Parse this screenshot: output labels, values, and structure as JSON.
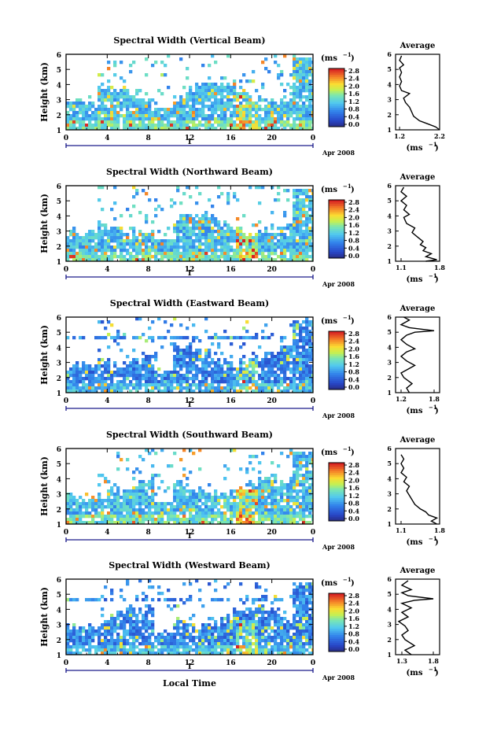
{
  "common": {
    "ylabel": "Height (km)",
    "unit": "(ms",
    "unit_exp": "−1",
    "date_label": "Apr 2008",
    "day_label": "1",
    "avg_title": "Average",
    "xlabel": "Local Time",
    "xticks": [
      "0",
      "4",
      "8",
      "12",
      "16",
      "20",
      "0"
    ],
    "yticks": [
      "1",
      "2",
      "3",
      "4",
      "5",
      "6"
    ],
    "cbar_ticks": [
      "2.8",
      "2.4",
      "2.0",
      "1.6",
      "1.2",
      "0.8",
      "0.4",
      "0.0"
    ]
  },
  "chart_data": [
    {
      "type": "heatmap",
      "title": "Spectral Width (Vertical Beam)",
      "xlabel": "",
      "ylabel": "Height (km)",
      "xlim": [
        0,
        24
      ],
      "ylim": [
        1,
        6
      ],
      "colorbar": {
        "label": "(ms^-1)",
        "range": [
          0.0,
          2.8
        ]
      },
      "profile": {
        "title": "Average",
        "xlabel": "(ms^-1)",
        "xticks": [
          "1.2",
          "2.2"
        ],
        "xlim": [
          1.1,
          2.2
        ],
        "points": [
          [
            2.2,
            1.0
          ],
          [
            2.1,
            1.2
          ],
          [
            1.9,
            1.4
          ],
          [
            1.7,
            1.6
          ],
          [
            1.55,
            1.9
          ],
          [
            1.5,
            2.2
          ],
          [
            1.45,
            2.5
          ],
          [
            1.35,
            2.8
          ],
          [
            1.3,
            3.1
          ],
          [
            1.45,
            3.4
          ],
          [
            1.25,
            3.6
          ],
          [
            1.2,
            3.9
          ],
          [
            1.25,
            4.2
          ],
          [
            1.2,
            4.5
          ],
          [
            1.25,
            4.8
          ],
          [
            1.2,
            5.1
          ],
          [
            1.3,
            5.3
          ],
          [
            1.2,
            5.6
          ],
          [
            1.25,
            5.9
          ]
        ]
      }
    },
    {
      "type": "heatmap",
      "title": "Spectral Width (Northward Beam)",
      "xlabel": "",
      "ylabel": "Height (km)",
      "xlim": [
        0,
        24
      ],
      "ylim": [
        1,
        6
      ],
      "colorbar": {
        "label": "(ms^-1)",
        "range": [
          0.0,
          2.8
        ]
      },
      "profile": {
        "title": "Average",
        "xlabel": "(ms^-1)",
        "xticks": [
          "1.1",
          "1.8"
        ],
        "xlim": [
          1.0,
          1.8
        ],
        "points": [
          [
            1.55,
            1.0
          ],
          [
            1.75,
            1.1
          ],
          [
            1.55,
            1.3
          ],
          [
            1.65,
            1.5
          ],
          [
            1.5,
            1.7
          ],
          [
            1.55,
            1.9
          ],
          [
            1.45,
            2.1
          ],
          [
            1.5,
            2.3
          ],
          [
            1.4,
            2.6
          ],
          [
            1.3,
            2.9
          ],
          [
            1.35,
            3.2
          ],
          [
            1.2,
            3.5
          ],
          [
            1.15,
            3.9
          ],
          [
            1.25,
            4.1
          ],
          [
            1.15,
            4.4
          ],
          [
            1.2,
            4.7
          ],
          [
            1.1,
            5.0
          ],
          [
            1.2,
            5.3
          ],
          [
            1.1,
            5.6
          ],
          [
            1.15,
            5.9
          ]
        ]
      }
    },
    {
      "type": "heatmap",
      "title": "Spectral Width (Eastward Beam)",
      "xlabel": "",
      "ylabel": "Height (km)",
      "xlim": [
        0,
        24
      ],
      "ylim": [
        1,
        6
      ],
      "colorbar": {
        "label": "(ms^-1)",
        "range": [
          0.0,
          2.8
        ]
      },
      "profile": {
        "title": "Average",
        "xlabel": "(ms^-1)",
        "xticks": [
          "1.2",
          "1.8"
        ],
        "xlim": [
          1.1,
          1.9
        ],
        "points": [
          [
            1.35,
            1.0
          ],
          [
            1.3,
            1.3
          ],
          [
            1.4,
            1.6
          ],
          [
            1.25,
            2.0
          ],
          [
            1.2,
            2.3
          ],
          [
            1.35,
            2.6
          ],
          [
            1.45,
            2.8
          ],
          [
            1.3,
            3.1
          ],
          [
            1.2,
            3.4
          ],
          [
            1.3,
            3.7
          ],
          [
            1.45,
            3.9
          ],
          [
            1.3,
            4.2
          ],
          [
            1.2,
            4.5
          ],
          [
            1.3,
            4.8
          ],
          [
            1.45,
            5.0
          ],
          [
            1.8,
            5.1
          ],
          [
            1.35,
            5.3
          ],
          [
            1.2,
            5.5
          ],
          [
            1.35,
            5.8
          ],
          [
            1.25,
            6.0
          ]
        ]
      }
    },
    {
      "type": "heatmap",
      "title": "Spectral Width (Southward Beam)",
      "xlabel": "",
      "ylabel": "Height (km)",
      "xlim": [
        0,
        24
      ],
      "ylim": [
        1,
        6
      ],
      "colorbar": {
        "label": "(ms^-1)",
        "range": [
          0.0,
          2.8
        ]
      },
      "profile": {
        "title": "Average",
        "xlabel": "(ms^-1)",
        "xticks": [
          "1.1",
          "1.8"
        ],
        "xlim": [
          1.0,
          1.8
        ],
        "points": [
          [
            1.75,
            1.0
          ],
          [
            1.65,
            1.2
          ],
          [
            1.75,
            1.4
          ],
          [
            1.6,
            1.6
          ],
          [
            1.55,
            1.8
          ],
          [
            1.45,
            2.0
          ],
          [
            1.35,
            2.3
          ],
          [
            1.3,
            2.6
          ],
          [
            1.25,
            2.9
          ],
          [
            1.2,
            3.2
          ],
          [
            1.25,
            3.5
          ],
          [
            1.15,
            3.8
          ],
          [
            1.2,
            4.1
          ],
          [
            1.1,
            4.4
          ],
          [
            1.15,
            4.7
          ],
          [
            1.1,
            5.0
          ],
          [
            1.15,
            5.3
          ],
          [
            1.1,
            5.6
          ]
        ]
      }
    },
    {
      "type": "heatmap",
      "title": "Spectral Width (Westward Beam)",
      "xlabel": "Local Time",
      "ylabel": "Height (km)",
      "xlim": [
        0,
        24
      ],
      "ylim": [
        1,
        6
      ],
      "colorbar": {
        "label": "(ms^-1)",
        "range": [
          0.0,
          2.8
        ]
      },
      "profile": {
        "title": "Average",
        "xlabel": "(ms^-1)",
        "xticks": [
          "1.3",
          "1.8"
        ],
        "xlim": [
          1.2,
          1.9
        ],
        "points": [
          [
            1.45,
            1.0
          ],
          [
            1.35,
            1.3
          ],
          [
            1.5,
            1.6
          ],
          [
            1.35,
            2.0
          ],
          [
            1.3,
            2.3
          ],
          [
            1.4,
            2.6
          ],
          [
            1.35,
            2.9
          ],
          [
            1.25,
            3.2
          ],
          [
            1.4,
            3.5
          ],
          [
            1.3,
            3.8
          ],
          [
            1.45,
            4.1
          ],
          [
            1.3,
            4.4
          ],
          [
            1.5,
            4.6
          ],
          [
            1.8,
            4.7
          ],
          [
            1.4,
            4.9
          ],
          [
            1.3,
            5.1
          ],
          [
            1.45,
            5.3
          ],
          [
            1.3,
            5.6
          ],
          [
            1.4,
            5.9
          ]
        ]
      }
    }
  ]
}
